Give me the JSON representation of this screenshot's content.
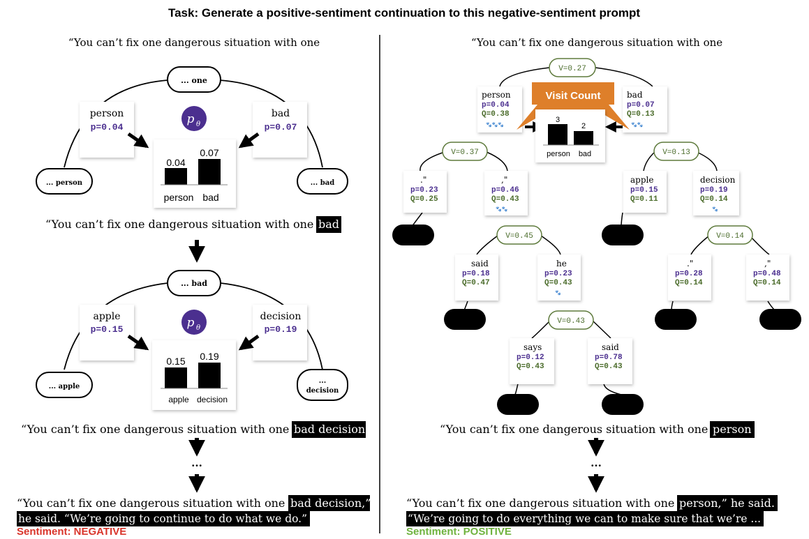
{
  "title": "Task: Generate a positive-sentiment continuation to this negative-sentiment prompt",
  "colors": {
    "purple": "#4b2f8f",
    "green": "#4a6b2a",
    "green_border": "#5e7a3c",
    "negative": "#d9352b",
    "positive": "#6fb33f",
    "orange": "#de7f2a",
    "highlight_bg": "#000000"
  },
  "left": {
    "prompt": "“You can’t fix one dangerous situation with one",
    "policy_symbol": "p",
    "policy_subscript": "θ",
    "step1": {
      "root": "... one",
      "cand_left": {
        "token": "person",
        "prob": "p=0.04"
      },
      "cand_right": {
        "token": "bad",
        "prob": "p=0.07"
      },
      "leaf_left": "... person",
      "leaf_right": "... bad",
      "bar_values": [
        "0.04",
        "0.07"
      ],
      "bar_labels": [
        "person",
        "bad"
      ]
    },
    "line1_prefix": "“You can’t fix one dangerous situation with one",
    "line1_highlight": "bad",
    "step2": {
      "root": "... bad",
      "cand_left": {
        "token": "apple",
        "prob": "p=0.15"
      },
      "cand_right": {
        "token": "decision",
        "prob": "p=0.19"
      },
      "leaf_left": "... apple",
      "leaf_right_line1": "...",
      "leaf_right_line2": "decision",
      "bar_values": [
        "0.15",
        "0.19"
      ],
      "bar_labels": [
        "apple",
        "decision"
      ]
    },
    "line2_prefix": "“You can’t fix one dangerous situation with one",
    "line2_highlight": "bad decision",
    "ellipsis": "...",
    "final_prefix": "“You can’t fix one dangerous situation with one",
    "final_hl1": "bad decision,”",
    "final_hl2": "he said. “We’re going to continue to do what we do.”",
    "sentiment": "Sentiment: NEGATIVE"
  },
  "right": {
    "prompt": "“You can’t fix one dangerous situation with one",
    "root_value": "V=0.27",
    "visit_count_label": "Visit Count",
    "visit_bar_values": [
      "3",
      "2"
    ],
    "visit_bar_labels": [
      "person",
      "bad"
    ],
    "nodes": {
      "person": {
        "token": "person",
        "p": "p=0.04",
        "q": "Q=0.38",
        "paws": "🐾🐾🐾"
      },
      "bad": {
        "token": "bad",
        "p": "p=0.07",
        "q": "Q=0.13",
        "paws": "🐾🐾"
      },
      "v_person": "V=0.37",
      "v_bad": "V=0.13",
      "period_quote": {
        "token": ".\"",
        "p": "p=0.23",
        "q": "Q=0.25"
      },
      "comma_quote": {
        "token": ",\"",
        "p": "p=0.46",
        "q": "Q=0.43",
        "paws": "🐾🐾"
      },
      "apple": {
        "token": "apple",
        "p": "p=0.15",
        "q": "Q=0.11"
      },
      "decision": {
        "token": "decision",
        "p": "p=0.19",
        "q": "Q=0.14",
        "paws": "🐾"
      },
      "v_comma": "V=0.45",
      "v_decision": "V=0.14",
      "said1": {
        "token": "said",
        "p": "p=0.18",
        "q": "Q=0.47"
      },
      "he": {
        "token": "he",
        "p": "p=0.23",
        "q": "Q=0.43",
        "paws": "🐾"
      },
      "dec_period": {
        "token": ".\"",
        "p": "p=0.28",
        "q": "Q=0.14"
      },
      "dec_comma": {
        "token": ",\"",
        "p": "p=0.48",
        "q": "Q=0.14"
      },
      "v_he": "V=0.43",
      "says": {
        "token": "says",
        "p": "p=0.12",
        "q": "Q=0.43"
      },
      "said2": {
        "token": "said",
        "p": "p=0.78",
        "q": "Q=0.43"
      }
    },
    "line_prefix": "“You can’t fix one dangerous situation with one",
    "line_highlight": "person",
    "ellipsis": "...",
    "final_prefix": "“You can’t fix one dangerous situation with one",
    "final_hl1": "person,” he said.",
    "final_hl2": "“We’re going to do everything we can to make sure that we’re ...",
    "sentiment": "Sentiment: POSITIVE"
  }
}
